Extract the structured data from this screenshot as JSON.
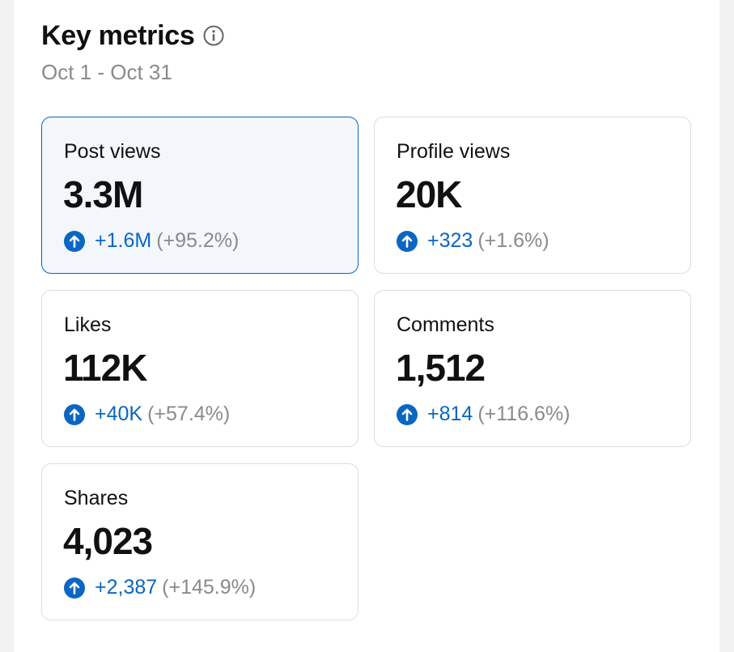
{
  "header": {
    "title": "Key metrics",
    "date_range": "Oct 1 - Oct 31"
  },
  "metrics": [
    {
      "label": "Post views",
      "value": "3.3M",
      "delta": "+1.6M",
      "percent": "(+95.2%)",
      "selected": true
    },
    {
      "label": "Profile views",
      "value": "20K",
      "delta": "+323",
      "percent": "(+1.6%)",
      "selected": false
    },
    {
      "label": "Likes",
      "value": "112K",
      "delta": "+40K",
      "percent": "(+57.4%)",
      "selected": false
    },
    {
      "label": "Comments",
      "value": "1,512",
      "delta": "+814",
      "percent": "(+116.6%)",
      "selected": false
    },
    {
      "label": "Shares",
      "value": "4,023",
      "delta": "+2,387",
      "percent": "(+145.9%)",
      "selected": false
    }
  ],
  "icons": {
    "info": "info-icon",
    "trend_up": "arrow-up-circle-icon"
  },
  "colors": {
    "accent": "#0a66c2",
    "muted": "#8a8a8a"
  }
}
